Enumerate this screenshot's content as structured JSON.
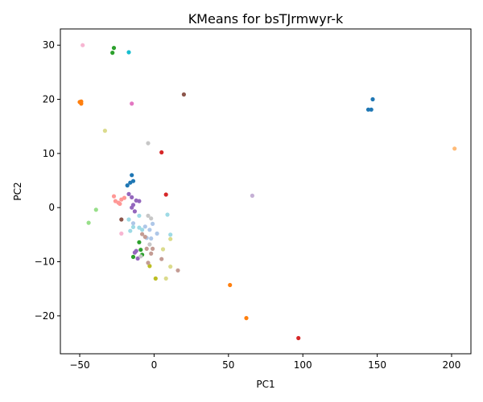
{
  "chart_data": {
    "type": "scatter",
    "title": "KMeans for bsTJrmwyr-k",
    "xlabel": "PC1",
    "ylabel": "PC2",
    "xlim": [
      -63,
      213
    ],
    "ylim": [
      -27,
      33
    ],
    "xticks": [
      -50,
      0,
      50,
      100,
      150,
      200
    ],
    "yticks": [
      -20,
      -10,
      0,
      10,
      20,
      30
    ],
    "xtick_labels": [
      "−50",
      "0",
      "50",
      "100",
      "150",
      "200"
    ],
    "ytick_labels": [
      "−20",
      "−10",
      "0",
      "10",
      "20",
      "30"
    ],
    "grid": false,
    "points": [
      {
        "x": 147,
        "y": 20.0,
        "color": "#1f77b4"
      },
      {
        "x": 144,
        "y": 18.1,
        "color": "#1f77b4"
      },
      {
        "x": 146,
        "y": 18.1,
        "color": "#1f77b4"
      },
      {
        "x": -15,
        "y": 6.0,
        "color": "#1f77b4"
      },
      {
        "x": -16,
        "y": 4.6,
        "color": "#1f77b4"
      },
      {
        "x": -14,
        "y": 4.9,
        "color": "#1f77b4"
      },
      {
        "x": -18,
        "y": 4.1,
        "color": "#1f77b4"
      },
      {
        "x": -50,
        "y": 19.5,
        "color": "#ff7f0e"
      },
      {
        "x": -49,
        "y": 19.2,
        "color": "#ff7f0e"
      },
      {
        "x": -49,
        "y": 19.6,
        "color": "#ff7f0e"
      },
      {
        "x": 51,
        "y": -14.3,
        "color": "#ff7f0e"
      },
      {
        "x": 62,
        "y": -20.4,
        "color": "#ff7f0e"
      },
      {
        "x": 202,
        "y": 10.9,
        "color": "#ffbb78"
      },
      {
        "x": -27,
        "y": 29.5,
        "color": "#2ca02c"
      },
      {
        "x": -28,
        "y": 28.6,
        "color": "#2ca02c"
      },
      {
        "x": -10,
        "y": -6.4,
        "color": "#2ca02c"
      },
      {
        "x": -9,
        "y": -7.8,
        "color": "#2ca02c"
      },
      {
        "x": -14,
        "y": -9.1,
        "color": "#2ca02c"
      },
      {
        "x": -8,
        "y": -8.7,
        "color": "#2ca02c"
      },
      {
        "x": -44,
        "y": -2.8,
        "color": "#98df8a"
      },
      {
        "x": -39,
        "y": -0.4,
        "color": "#98df8a"
      },
      {
        "x": 5,
        "y": 10.2,
        "color": "#d62728"
      },
      {
        "x": 8,
        "y": 2.4,
        "color": "#d62728"
      },
      {
        "x": 97,
        "y": -24.1,
        "color": "#d62728"
      },
      {
        "x": -27,
        "y": 2.1,
        "color": "#ff9896"
      },
      {
        "x": -26,
        "y": 1.2,
        "color": "#ff9896"
      },
      {
        "x": -24,
        "y": 0.9,
        "color": "#ff9896"
      },
      {
        "x": -23,
        "y": 0.7,
        "color": "#ff9896"
      },
      {
        "x": -22,
        "y": 1.5,
        "color": "#ff9896"
      },
      {
        "x": -20,
        "y": 1.8,
        "color": "#ff9896"
      },
      {
        "x": -17,
        "y": 2.5,
        "color": "#9467bd"
      },
      {
        "x": -15,
        "y": 1.9,
        "color": "#9467bd"
      },
      {
        "x": -12,
        "y": 1.3,
        "color": "#9467bd"
      },
      {
        "x": -10,
        "y": 1.2,
        "color": "#9467bd"
      },
      {
        "x": -14,
        "y": 0.5,
        "color": "#9467bd"
      },
      {
        "x": -15,
        "y": 0.0,
        "color": "#9467bd"
      },
      {
        "x": -13,
        "y": -0.7,
        "color": "#9467bd"
      },
      {
        "x": -13,
        "y": -8.3,
        "color": "#9467bd"
      },
      {
        "x": -12,
        "y": -8.0,
        "color": "#9467bd"
      },
      {
        "x": -11,
        "y": -9.4,
        "color": "#9467bd"
      },
      {
        "x": 66,
        "y": 2.2,
        "color": "#c5b0d5"
      },
      {
        "x": 20,
        "y": 20.9,
        "color": "#8c564b"
      },
      {
        "x": -22,
        "y": -2.2,
        "color": "#8c564b"
      },
      {
        "x": -15,
        "y": 19.2,
        "color": "#e377c2"
      },
      {
        "x": -48,
        "y": 30.0,
        "color": "#f7b6d2"
      },
      {
        "x": -22,
        "y": -4.8,
        "color": "#f7b6d2"
      },
      {
        "x": -4,
        "y": 11.9,
        "color": "#c7c7c7"
      },
      {
        "x": -4,
        "y": -1.5,
        "color": "#c7c7c7"
      },
      {
        "x": -2,
        "y": -2.0,
        "color": "#c7c7c7"
      },
      {
        "x": -3,
        "y": -6.8,
        "color": "#c7c7c7"
      },
      {
        "x": -9,
        "y": -9.0,
        "color": "#c7c7c7"
      },
      {
        "x": -33,
        "y": 14.2,
        "color": "#dbdb8d"
      },
      {
        "x": 11,
        "y": -5.8,
        "color": "#dbdb8d"
      },
      {
        "x": 6,
        "y": -7.7,
        "color": "#dbdb8d"
      },
      {
        "x": 11,
        "y": -10.9,
        "color": "#dbdb8d"
      },
      {
        "x": 8,
        "y": -13.1,
        "color": "#dbdb8d"
      },
      {
        "x": -3,
        "y": -10.8,
        "color": "#bcbd22"
      },
      {
        "x": 1,
        "y": -13.1,
        "color": "#bcbd22"
      },
      {
        "x": -17,
        "y": 28.7,
        "color": "#17becf"
      },
      {
        "x": 11,
        "y": -5.0,
        "color": "#9edae5"
      },
      {
        "x": -10,
        "y": -1.5,
        "color": "#9edae5"
      },
      {
        "x": -10,
        "y": -3.7,
        "color": "#9edae5"
      },
      {
        "x": -8,
        "y": -4.1,
        "color": "#9edae5"
      },
      {
        "x": -14,
        "y": -3.6,
        "color": "#9edae5"
      },
      {
        "x": -17,
        "y": -2.2,
        "color": "#9edae5"
      },
      {
        "x": -16,
        "y": -4.3,
        "color": "#9edae5"
      },
      {
        "x": 9,
        "y": -1.3,
        "color": "#9edae5"
      },
      {
        "x": -14,
        "y": -2.9,
        "color": "#aec7e8"
      },
      {
        "x": -6,
        "y": -3.5,
        "color": "#aec7e8"
      },
      {
        "x": -3,
        "y": -4.1,
        "color": "#aec7e8"
      },
      {
        "x": -1,
        "y": -3.0,
        "color": "#aec7e8"
      },
      {
        "x": -5,
        "y": -5.6,
        "color": "#aec7e8"
      },
      {
        "x": -2,
        "y": -5.7,
        "color": "#aec7e8"
      },
      {
        "x": 2,
        "y": -4.8,
        "color": "#aec7e8"
      },
      {
        "x": -8,
        "y": -4.9,
        "color": "#c49c94"
      },
      {
        "x": -6,
        "y": -5.4,
        "color": "#c49c94"
      },
      {
        "x": -5,
        "y": -7.6,
        "color": "#c49c94"
      },
      {
        "x": -1,
        "y": -7.6,
        "color": "#c49c94"
      },
      {
        "x": -2,
        "y": -8.5,
        "color": "#c49c94"
      },
      {
        "x": 5,
        "y": -9.5,
        "color": "#c49c94"
      },
      {
        "x": 16,
        "y": -11.6,
        "color": "#c49c94"
      },
      {
        "x": -4,
        "y": -10.2,
        "color": "#c49c94"
      }
    ]
  }
}
